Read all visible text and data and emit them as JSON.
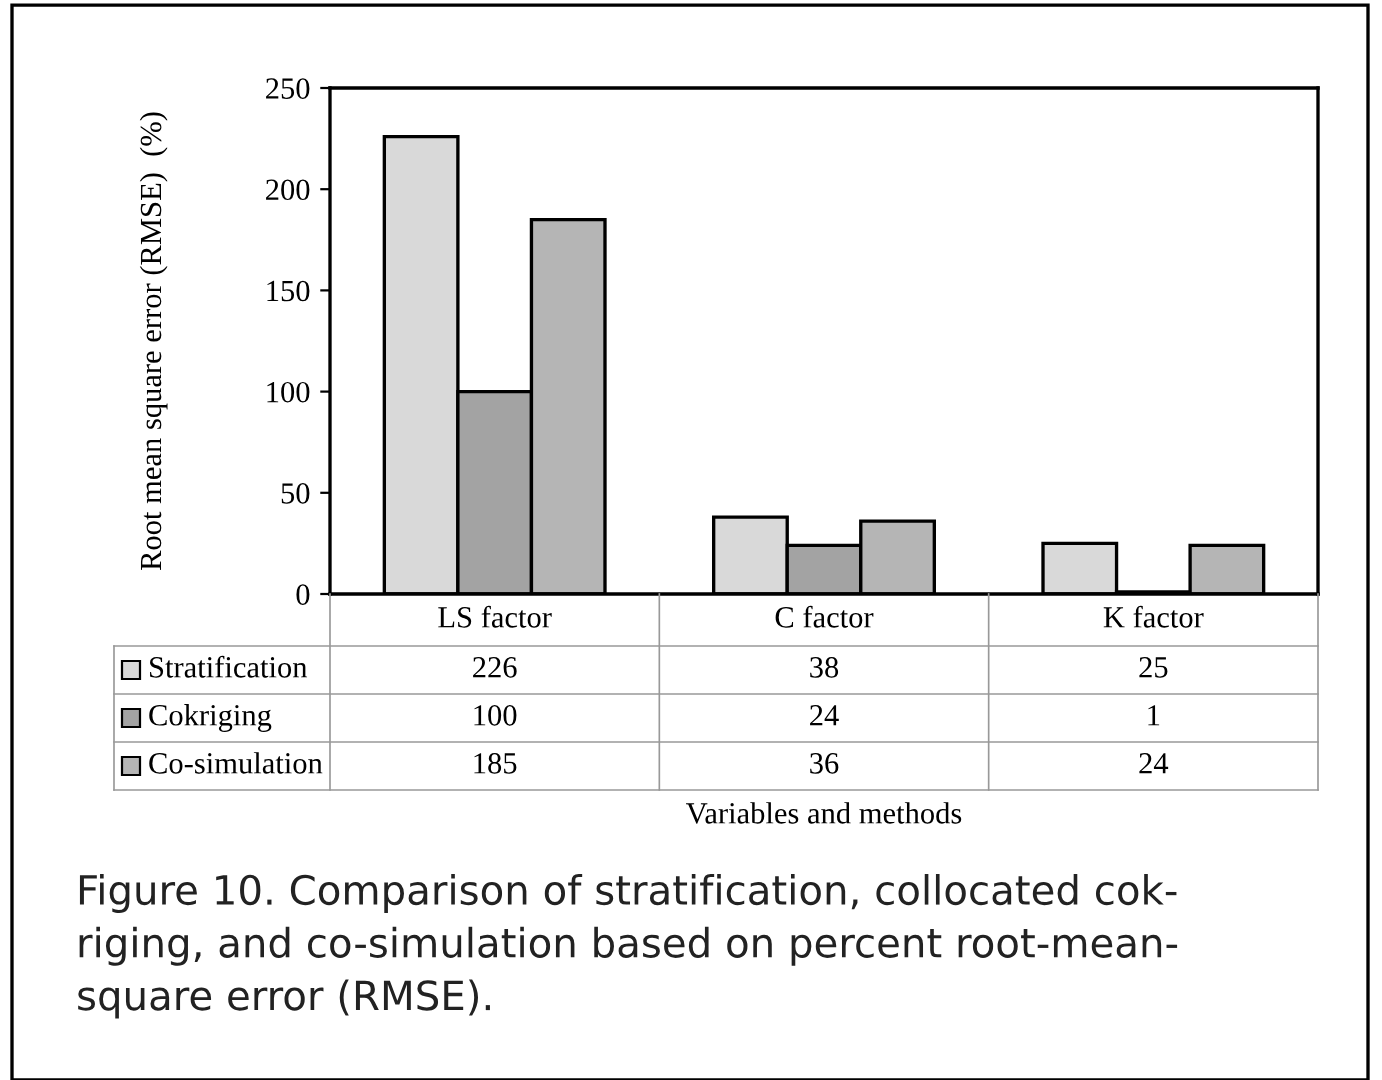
{
  "chart_data": {
    "type": "bar",
    "ylabel": "Root mean square error (RMSE)  (%)",
    "legend": "bottom left",
    "categories": [
      "LS factor",
      "C factor",
      "K factor"
    ],
    "series": [
      {
        "name": "Stratification",
        "color": "#d9d9d9",
        "values": [
          226,
          38,
          25
        ]
      },
      {
        "name": "Cokriging",
        "color": "#a3a3a3",
        "values": [
          100,
          24,
          1
        ]
      },
      {
        "name": "Co-simulation",
        "color": "#b5b5b5",
        "values": [
          185,
          36,
          24
        ]
      }
    ],
    "ylim": [
      0,
      250
    ],
    "yticks": [
      0,
      50,
      100,
      150,
      200,
      250
    ],
    "grid": false,
    "data_labels": true,
    "annotations": [
      "Variables and methods",
      "Figure 10. Comparison of stratification, collocated cok-\nriging, and co-simulation based on percent root-mean-\nsquare error (RMSE)."
    ]
  }
}
